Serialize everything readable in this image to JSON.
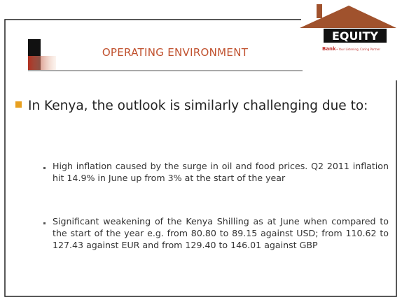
{
  "logo": {
    "name": "EQUITY",
    "sub": "Bank",
    "tagline": "• Your Listening, Caring Partner"
  },
  "title": "OPERATING ENVIRONMENT",
  "bullet": "In Kenya, the outlook is similarly challenging due to:",
  "sub_bullets": [
    "High inflation caused by the surge in oil and food prices. Q2 2011 inflation hit 14.9% in June up from 3% at the start of the year",
    "Significant weakening of the Kenya Shilling as at June when compared to the start of the year e.g. from 80.80 to 89.15 against USD; from 110.62 to 127.43 against EUR and  from 129.40 to 146.01 against GBP"
  ]
}
